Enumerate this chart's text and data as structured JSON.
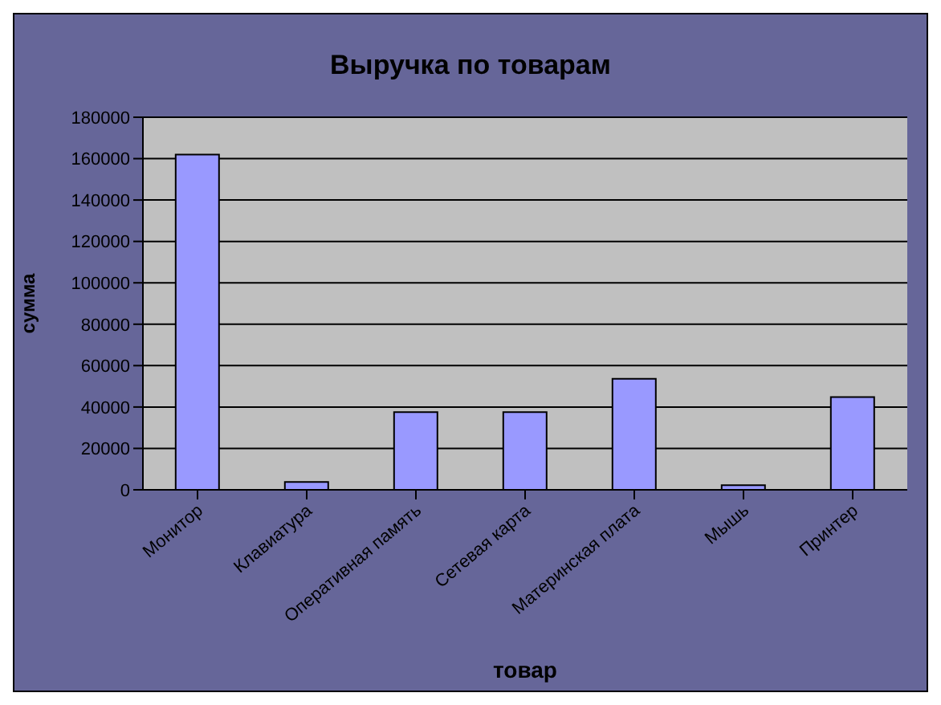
{
  "chart_data": {
    "type": "bar",
    "title": "Выручка по товарам",
    "xlabel": "товар",
    "ylabel": "сумма",
    "categories": [
      "Монитор",
      "Клавиатура",
      "Оперативная память",
      "Сетевая карта",
      "Материнская плата",
      "Мышь",
      "Принтер"
    ],
    "values": [
      162000,
      3800,
      37500,
      37500,
      53600,
      2200,
      44800
    ],
    "color": "#9999ff",
    "ylim": [
      0,
      180000
    ],
    "yticks": [
      0,
      20000,
      40000,
      60000,
      80000,
      100000,
      120000,
      140000,
      160000,
      180000
    ],
    "grid": "y"
  }
}
